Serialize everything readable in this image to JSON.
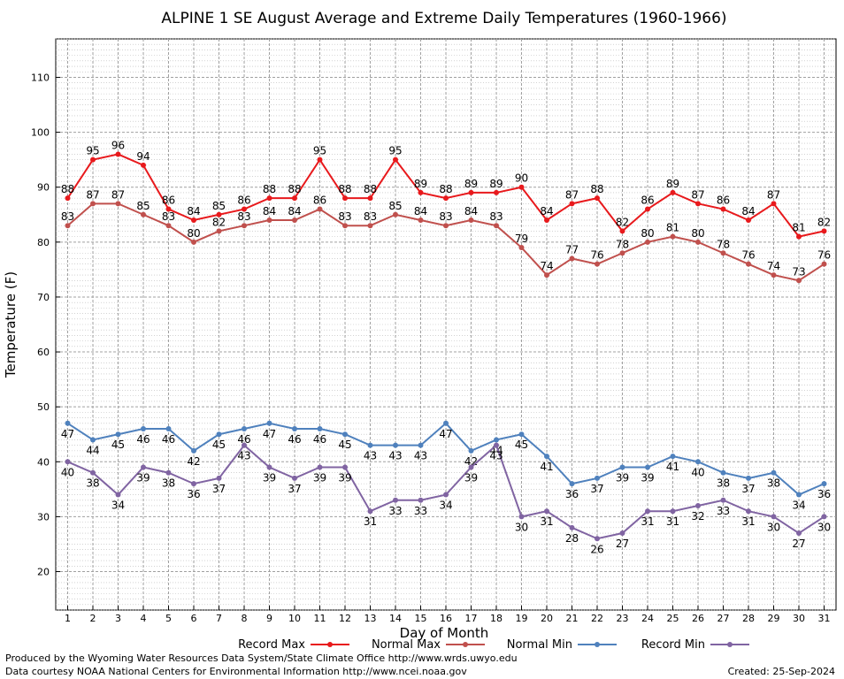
{
  "chart_data": {
    "type": "line",
    "title": "ALPINE 1 SE August Average and Extreme Daily Temperatures (1960-1966)",
    "xlabel": "Day of Month",
    "ylabel": "Temperature (F)",
    "ylim": [
      13,
      117
    ],
    "yticks": [
      20,
      30,
      40,
      50,
      60,
      70,
      80,
      90,
      100,
      110
    ],
    "x": [
      1,
      2,
      3,
      4,
      5,
      6,
      7,
      8,
      9,
      10,
      11,
      12,
      13,
      14,
      15,
      16,
      17,
      18,
      19,
      20,
      21,
      22,
      23,
      24,
      25,
      26,
      27,
      28,
      29,
      30,
      31
    ],
    "grid": true,
    "legend_position": "bottom",
    "series": [
      {
        "name": "Record Max",
        "color": "#e8191c",
        "label_pos": "above",
        "values": [
          88,
          95,
          96,
          94,
          86,
          84,
          85,
          86,
          88,
          88,
          95,
          88,
          88,
          95,
          89,
          88,
          89,
          89,
          90,
          84,
          87,
          88,
          82,
          86,
          89,
          87,
          86,
          84,
          87,
          81,
          82
        ]
      },
      {
        "name": "Normal Max",
        "color": "#c0504d",
        "label_pos": "above",
        "values": [
          83,
          87,
          87,
          85,
          83,
          80,
          82,
          83,
          84,
          84,
          86,
          83,
          83,
          85,
          84,
          83,
          84,
          83,
          79,
          74,
          77,
          76,
          78,
          80,
          81,
          80,
          78,
          76,
          74,
          73,
          76
        ]
      },
      {
        "name": "Normal Min",
        "color": "#4f81bd",
        "label_pos": "below",
        "values": [
          47,
          44,
          45,
          46,
          46,
          42,
          45,
          46,
          47,
          46,
          46,
          45,
          43,
          43,
          43,
          47,
          42,
          44,
          45,
          41,
          36,
          37,
          39,
          39,
          41,
          40,
          38,
          37,
          38,
          34,
          36
        ]
      },
      {
        "name": "Record Min",
        "color": "#8064a2",
        "label_pos": "below",
        "values": [
          40,
          38,
          34,
          39,
          38,
          36,
          37,
          43,
          39,
          37,
          39,
          39,
          31,
          33,
          33,
          34,
          39,
          43,
          30,
          31,
          28,
          26,
          27,
          31,
          31,
          32,
          33,
          31,
          30,
          27,
          30
        ]
      }
    ]
  },
  "footer": {
    "line1": "Produced by the Wyoming Water Resources Data System/State Climate Office http://www.wrds.uwyo.edu",
    "line2": "Data courtesy NOAA National Centers for Environmental Information http://www.ncei.noaa.gov",
    "created": "Created: 25-Sep-2024"
  }
}
